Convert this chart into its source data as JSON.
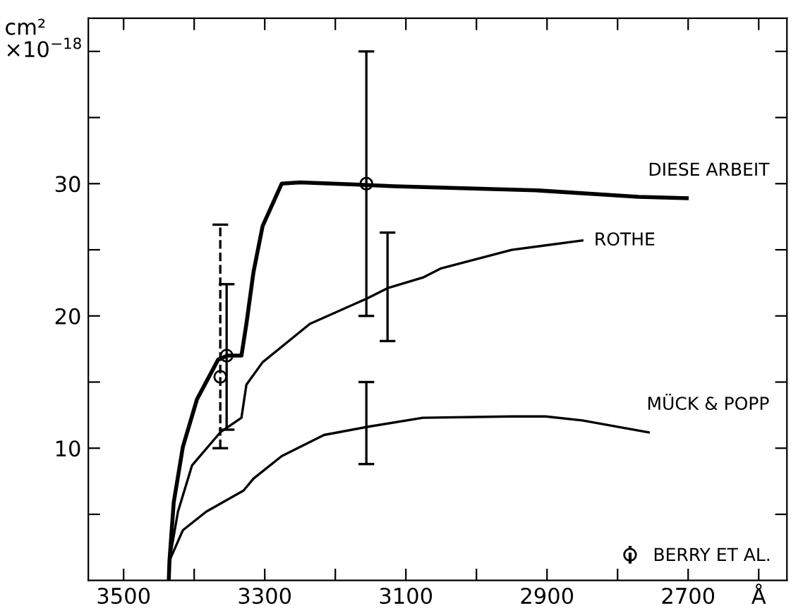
{
  "chart_data": {
    "type": "line",
    "ylabel": "cm²\n×10$^{−18}$",
    "xlim": [
      3550,
      2560
    ],
    "ylim": [
      0,
      42.5
    ],
    "xticks": [
      3500,
      {
        "value": 3400,
        "label": null
      },
      3300,
      {
        "value": 3200,
        "label": null
      },
      3100,
      {
        "value": 3000,
        "label": null
      },
      2900,
      {
        "value": 2800,
        "label": null
      },
      2700,
      {
        "value": 2600,
        "label": "Å"
      }
    ],
    "yticks": [
      {
        "value": 5,
        "label": null
      },
      10,
      {
        "value": 15,
        "label": null
      },
      20,
      {
        "value": 25,
        "label": null
      },
      30,
      {
        "value": 35,
        "label": null
      },
      {
        "value": 40,
        "label": null
      }
    ],
    "grid": false,
    "legend": "bottom right",
    "marker": "none",
    "line_style": "solid",
    "series": [
      {
        "name": "DIESE ARBEIT",
        "color": "#000000",
        "x": [
          3436,
          3435,
          3429,
          3416,
          3396,
          3366,
          3353,
          3333,
          3326,
          3316,
          3303,
          3276,
          3250,
          3156,
          3116,
          2916,
          2770,
          2702
        ],
        "values": [
          0,
          1.5,
          5.9,
          10.1,
          13.7,
          16.7,
          17.0,
          17.0,
          19.4,
          23.3,
          26.8,
          30.0,
          30.1,
          29.9,
          29.8,
          29.5,
          29.0,
          28.9
        ]
      },
      {
        "type": "scatter",
        "color": "#000000",
        "marker": "circle",
        "x": [
          3354,
          3156
        ],
        "values": [
          17.0,
          30.0
        ],
        "errors": [
          [
            11.4,
            22.4
          ],
          [
            20,
            40
          ]
        ]
      },
      {
        "name": "ROTHE",
        "color": "#000000",
        "x": [
          3436,
          3435,
          3423,
          3403,
          3363,
          3333,
          3326,
          3303,
          3236,
          3156,
          3126,
          3076,
          3050,
          2950,
          2850
        ],
        "values": [
          0,
          1.5,
          5.2,
          8.7,
          11.2,
          12.3,
          14.8,
          16.5,
          19.4,
          21.3,
          22.1,
          22.9,
          23.6,
          25.0,
          25.7
        ],
        "errors": [
          null,
          null,
          null,
          null,
          null,
          null,
          null,
          null,
          null,
          null,
          [
            18.1,
            26.3
          ],
          null,
          null,
          null,
          null
        ]
      },
      {
        "name": "MÜCK & POPP",
        "color": "#000000",
        "x": [
          3436,
          3435,
          3416,
          3383,
          3330,
          3316,
          3276,
          3216,
          3156,
          3076,
          2950,
          2902,
          2850,
          2756
        ],
        "values": [
          0,
          1.5,
          3.8,
          5.2,
          6.8,
          7.7,
          9.4,
          11.0,
          11.6,
          12.3,
          12.4,
          12.4,
          12.1,
          11.2
        ],
        "errors": [
          null,
          null,
          null,
          null,
          null,
          null,
          null,
          null,
          [
            8.8,
            15.0
          ],
          null,
          null,
          null,
          null,
          null
        ]
      },
      {
        "name": "BERRY ET AL.",
        "type": "scatter",
        "color": "#000000",
        "marker": "circle",
        "line_style": "dashed",
        "x": [
          3363
        ],
        "values": [
          15.4
        ],
        "errors": [
          [
            10.0,
            26.9
          ]
        ]
      }
    ]
  }
}
